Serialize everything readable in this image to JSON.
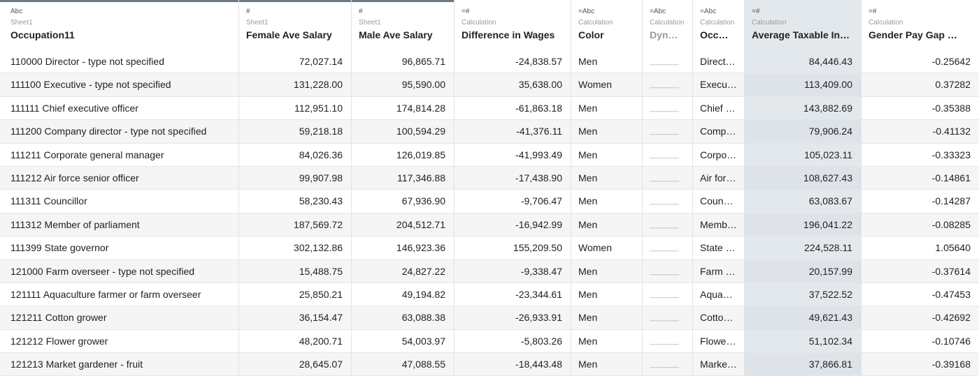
{
  "columns": [
    {
      "type_icon": "Abc",
      "source": "Sheet1",
      "name": "Occupation11"
    },
    {
      "type_icon": "#",
      "source": "Sheet1",
      "name": "Female Ave Salary"
    },
    {
      "type_icon": "#",
      "source": "Sheet1",
      "name": "Male Ave Salary"
    },
    {
      "type_icon": "=#",
      "source": "Calculation",
      "name": "Difference in Wages"
    },
    {
      "type_icon": "=Abc",
      "source": "Calculation",
      "name": "Color"
    },
    {
      "type_icon": "=Abc",
      "source": "Calculation",
      "name": "Dyn…"
    },
    {
      "type_icon": "=Abc",
      "source": "Calculation",
      "name": "Occ…"
    },
    {
      "type_icon": "=#",
      "source": "Calculation",
      "name": "Average Taxable In…"
    },
    {
      "type_icon": "=#",
      "source": "Calculation",
      "name": "Gender Pay Gap …"
    }
  ],
  "rows": [
    [
      "110000 Director - type not specified",
      "72,027.14",
      "96,865.71",
      "-24,838.57",
      "Men",
      "________",
      "Direct…",
      "84,446.43",
      "-0.25642"
    ],
    [
      "111100 Executive - type not specified",
      "131,228.00",
      "95,590.00",
      "35,638.00",
      "Women",
      "________",
      "Execu…",
      "113,409.00",
      "0.37282"
    ],
    [
      "111111 Chief executive officer",
      "112,951.10",
      "174,814.28",
      "-61,863.18",
      "Men",
      "________",
      "Chief …",
      "143,882.69",
      "-0.35388"
    ],
    [
      "111200 Company director - type not specified",
      "59,218.18",
      "100,594.29",
      "-41,376.11",
      "Men",
      "________",
      "Comp…",
      "79,906.24",
      "-0.41132"
    ],
    [
      "111211 Corporate general manager",
      "84,026.36",
      "126,019.85",
      "-41,993.49",
      "Men",
      "________",
      "Corpo…",
      "105,023.11",
      "-0.33323"
    ],
    [
      "111212 Air force senior officer",
      "99,907.98",
      "117,346.88",
      "-17,438.90",
      "Men",
      "________",
      "Air for…",
      "108,627.43",
      "-0.14861"
    ],
    [
      "111311 Councillor",
      "58,230.43",
      "67,936.90",
      "-9,706.47",
      "Men",
      "________",
      "Counc…",
      "63,083.67",
      "-0.14287"
    ],
    [
      "111312 Member of parliament",
      "187,569.72",
      "204,512.71",
      "-16,942.99",
      "Men",
      "________",
      "Memb…",
      "196,041.22",
      "-0.08285"
    ],
    [
      "111399 State governor",
      "302,132.86",
      "146,923.36",
      "155,209.50",
      "Women",
      "________",
      "State …",
      "224,528.11",
      "1.05640"
    ],
    [
      "121000 Farm overseer - type not specified",
      "15,488.75",
      "24,827.22",
      "-9,338.47",
      "Men",
      "________",
      "Farm …",
      "20,157.99",
      "-0.37614"
    ],
    [
      "121111 Aquaculture farmer or farm overseer",
      "25,850.21",
      "49,194.82",
      "-23,344.61",
      "Men",
      "________",
      "Aquac…",
      "37,522.52",
      "-0.47453"
    ],
    [
      "121211 Cotton grower",
      "36,154.47",
      "63,088.38",
      "-26,933.91",
      "Men",
      "________",
      "Cotto…",
      "49,621.43",
      "-0.42692"
    ],
    [
      "121212 Flower grower",
      "48,200.71",
      "54,003.97",
      "-5,803.26",
      "Men",
      "________",
      "Flowe…",
      "51,102.34",
      "-0.10746"
    ],
    [
      "121213 Market gardener - fruit",
      "28,645.07",
      "47,088.55",
      "-18,443.48",
      "Men",
      "________",
      "Marke…",
      "37,866.81",
      "-0.39168"
    ]
  ]
}
